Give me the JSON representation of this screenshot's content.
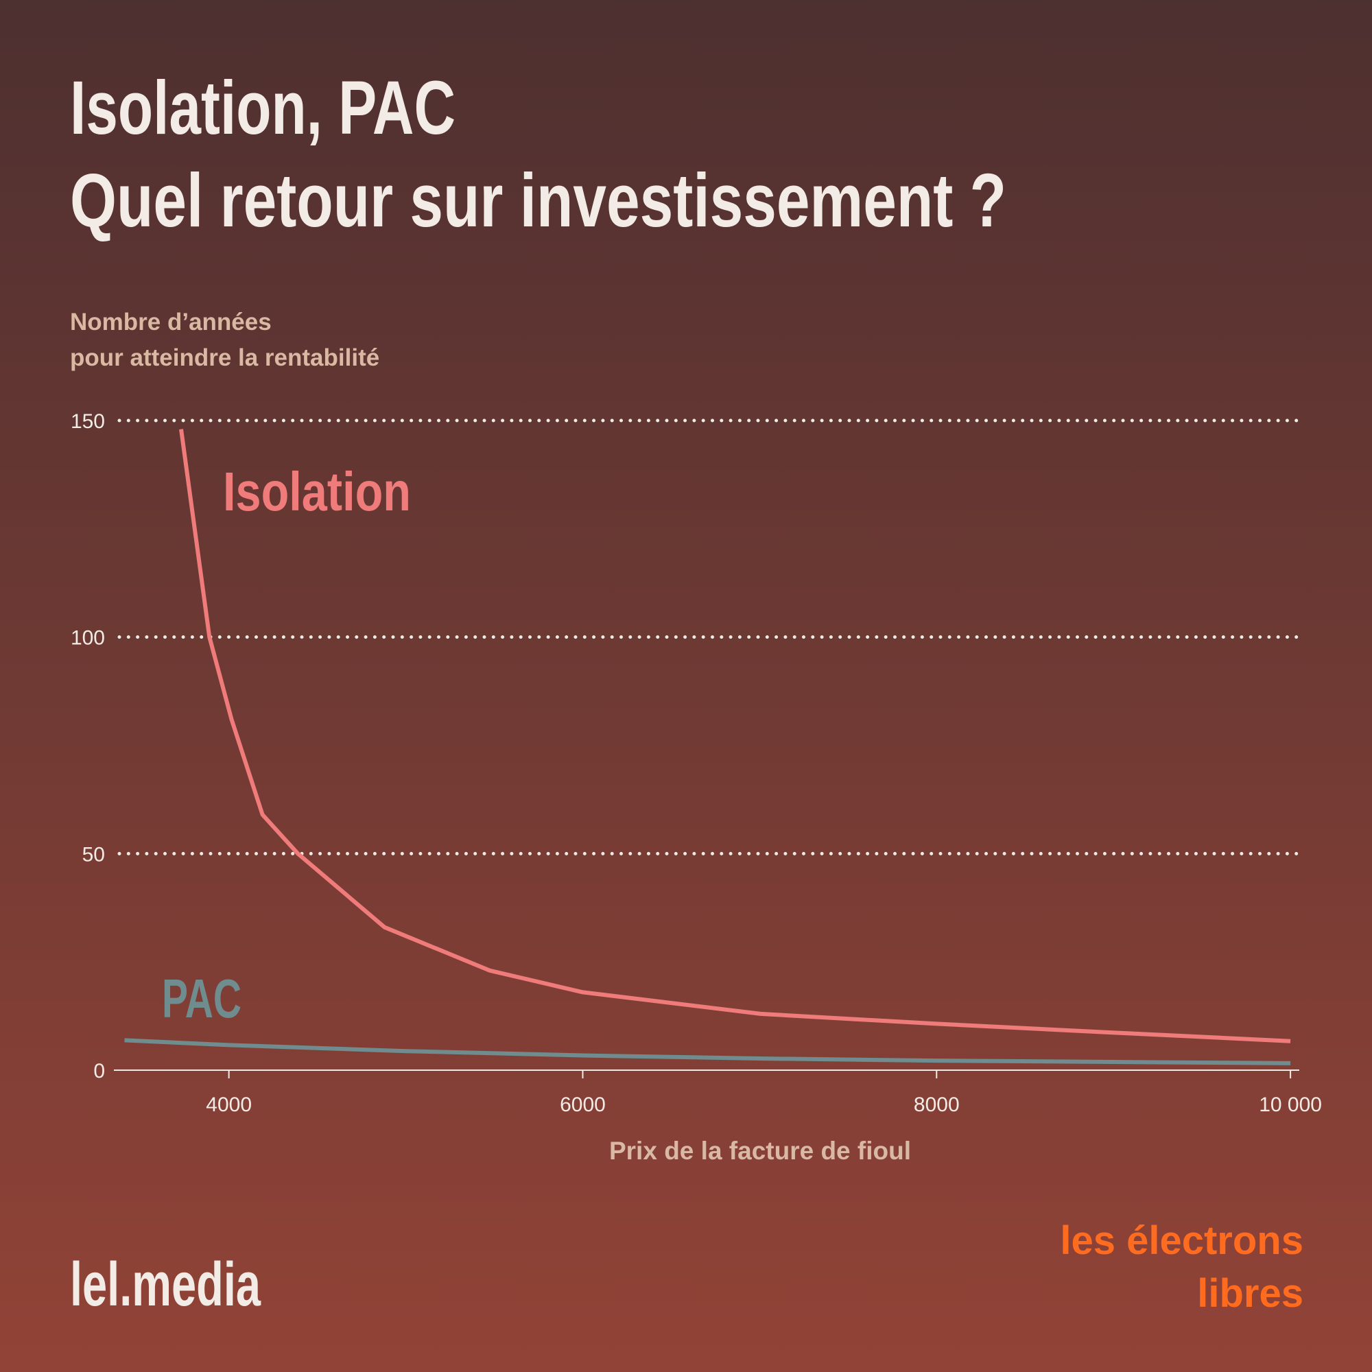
{
  "chart_data": {
    "type": "line",
    "title": "Isolation, PAC",
    "subtitle": "Quel retour sur investissement ?",
    "ylabel": [
      "Nombre d’années",
      "pour atteindre la rentabilité"
    ],
    "xlabel": "Prix de la facture de fioul",
    "xlim": [
      3350,
      10050
    ],
    "ylim": [
      0,
      150
    ],
    "xticks": [
      4000,
      6000,
      8000,
      {
        "value": 10000,
        "label": "10 000"
      }
    ],
    "yticks": [
      0,
      50,
      100,
      150
    ],
    "grid": true,
    "series": [
      {
        "name": "Isolation",
        "color": "#ef7b7b",
        "x": [
          3730,
          3890,
          4015,
          4190,
          4390,
          4880,
          5475,
          6000,
          7005,
          8000,
          8985,
          10000
        ],
        "values": [
          148,
          100,
          81,
          59,
          50,
          33,
          23,
          18,
          13,
          10.7,
          8.7,
          6.7
        ]
      },
      {
        "name": "PAC",
        "color": "#6f8c8e",
        "x": [
          3410,
          4000,
          5000,
          6000,
          7000,
          8000,
          9000,
          10000
        ],
        "values": [
          6.9,
          5.8,
          4.4,
          3.4,
          2.7,
          2.2,
          1.9,
          1.6
        ]
      }
    ]
  },
  "footer": {
    "site": "lel.media",
    "logo": [
      "les électrons",
      "libres"
    ]
  }
}
